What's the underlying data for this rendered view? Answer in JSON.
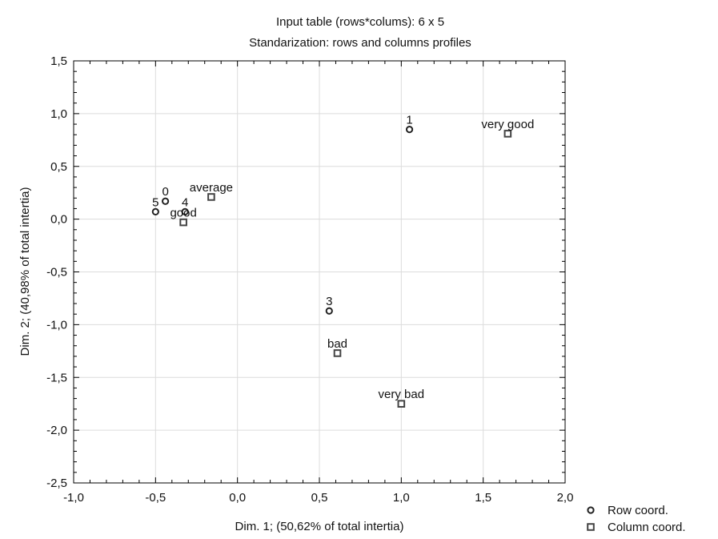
{
  "chart_data": {
    "type": "scatter",
    "title": "Input table (rows*colums): 6 x 5",
    "subtitle": "Standarization: rows and columns profiles",
    "xlabel": "Dim. 1; (50,62% of total intertia)",
    "ylabel": "Dim. 2; (40,98% of total intertia)",
    "xlim": [
      -1.0,
      2.0
    ],
    "ylim": [
      -2.5,
      1.5
    ],
    "xticks": [
      -1.0,
      -0.5,
      0.0,
      0.5,
      1.0,
      1.5,
      2.0
    ],
    "yticks": [
      -2.5,
      -2.0,
      -1.5,
      -1.0,
      -0.5,
      0.0,
      0.5,
      1.0,
      1.5
    ],
    "xtick_labels": [
      "-1,0",
      "-0,5",
      "0,0",
      "0,5",
      "1,0",
      "1,5",
      "2,0"
    ],
    "ytick_labels": [
      "-2,5",
      "-2,0",
      "-1,5",
      "-1,0",
      "-0,5",
      "0,0",
      "0,5",
      "1,0",
      "1,5"
    ],
    "grid": true,
    "legend_position": "bottom-right",
    "series": [
      {
        "name": "Row coord.",
        "marker": "circle",
        "points": [
          {
            "label": "1",
            "x": 1.05,
            "y": 0.85
          },
          {
            "label": "0",
            "x": -0.44,
            "y": 0.17
          },
          {
            "label": "5",
            "x": -0.5,
            "y": 0.07
          },
          {
            "label": "4",
            "x": -0.32,
            "y": 0.07
          },
          {
            "label": "3",
            "x": 0.56,
            "y": -0.87
          }
        ]
      },
      {
        "name": "Column coord.",
        "marker": "square",
        "points": [
          {
            "label": "very good",
            "x": 1.65,
            "y": 0.81
          },
          {
            "label": "average",
            "x": -0.16,
            "y": 0.21
          },
          {
            "label": "good",
            "x": -0.33,
            "y": -0.03
          },
          {
            "label": "bad",
            "x": 0.61,
            "y": -1.27
          },
          {
            "label": "very bad",
            "x": 1.0,
            "y": -1.75
          }
        ]
      }
    ]
  }
}
